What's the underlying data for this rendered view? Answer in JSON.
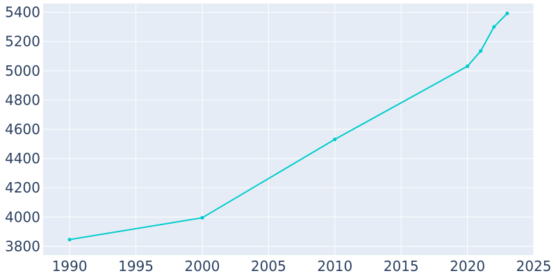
{
  "chart_data": {
    "type": "line",
    "title": "",
    "xlabel": "",
    "ylabel": "",
    "x": [
      1990,
      2000,
      2010,
      2020,
      2021,
      2022,
      2023
    ],
    "series": [
      {
        "values": [
          3846,
          3995,
          4531,
          5031,
          5135,
          5300,
          5392
        ]
      }
    ],
    "xlim": [
      1988,
      2025
    ],
    "ylim": [
      3740,
      5460
    ],
    "xticks": [
      1990,
      1995,
      2000,
      2005,
      2010,
      2015,
      2020,
      2025
    ],
    "yticks": [
      3800,
      4000,
      4200,
      4400,
      4600,
      4800,
      5000,
      5200,
      5400
    ],
    "grid": true,
    "legend": "none",
    "colors": {
      "line": "#00cccc",
      "plot_background": "#e5ecf6",
      "grid": "#ffffff",
      "text": "#2a3f5f"
    }
  }
}
